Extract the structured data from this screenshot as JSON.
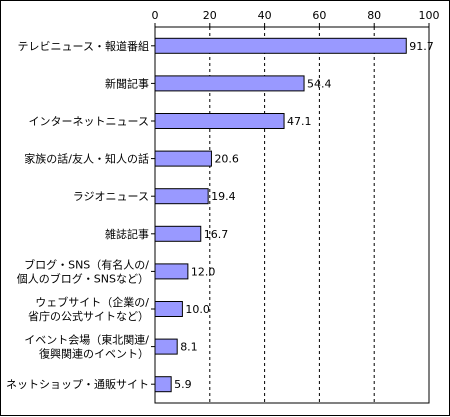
{
  "chart_data": {
    "type": "bar",
    "orientation": "horizontal",
    "categories": [
      "テレビニュース・報道番組",
      "新聞記事",
      "インターネットニュース",
      "家族の話/友人・知人の話",
      "ラジオニュース",
      "雑誌記事",
      "ブログ・SNS（有名人の/\n個人のブログ・SNSなど）",
      "ウェブサイト（企業の/\n省庁の公式サイトなど）",
      "イベント会場（東北関連/\n復興関連のイベント）",
      "ネットショップ・通販サイト"
    ],
    "values": [
      91.7,
      54.4,
      47.1,
      20.6,
      19.4,
      16.7,
      12.0,
      10.0,
      8.1,
      5.9
    ],
    "value_labels": [
      "91.7",
      "54.4",
      "47.1",
      "20.6",
      "19.4",
      "16.7",
      "12.0",
      "10.0",
      "8.1",
      "5.9"
    ],
    "xlim": [
      0,
      100
    ],
    "x_ticks": [
      "0",
      "20",
      "40",
      "60",
      "80",
      "100"
    ],
    "grid": "vertical-dashed",
    "bar_color": "#9999ff",
    "title": "",
    "xlabel": "",
    "ylabel": ""
  }
}
